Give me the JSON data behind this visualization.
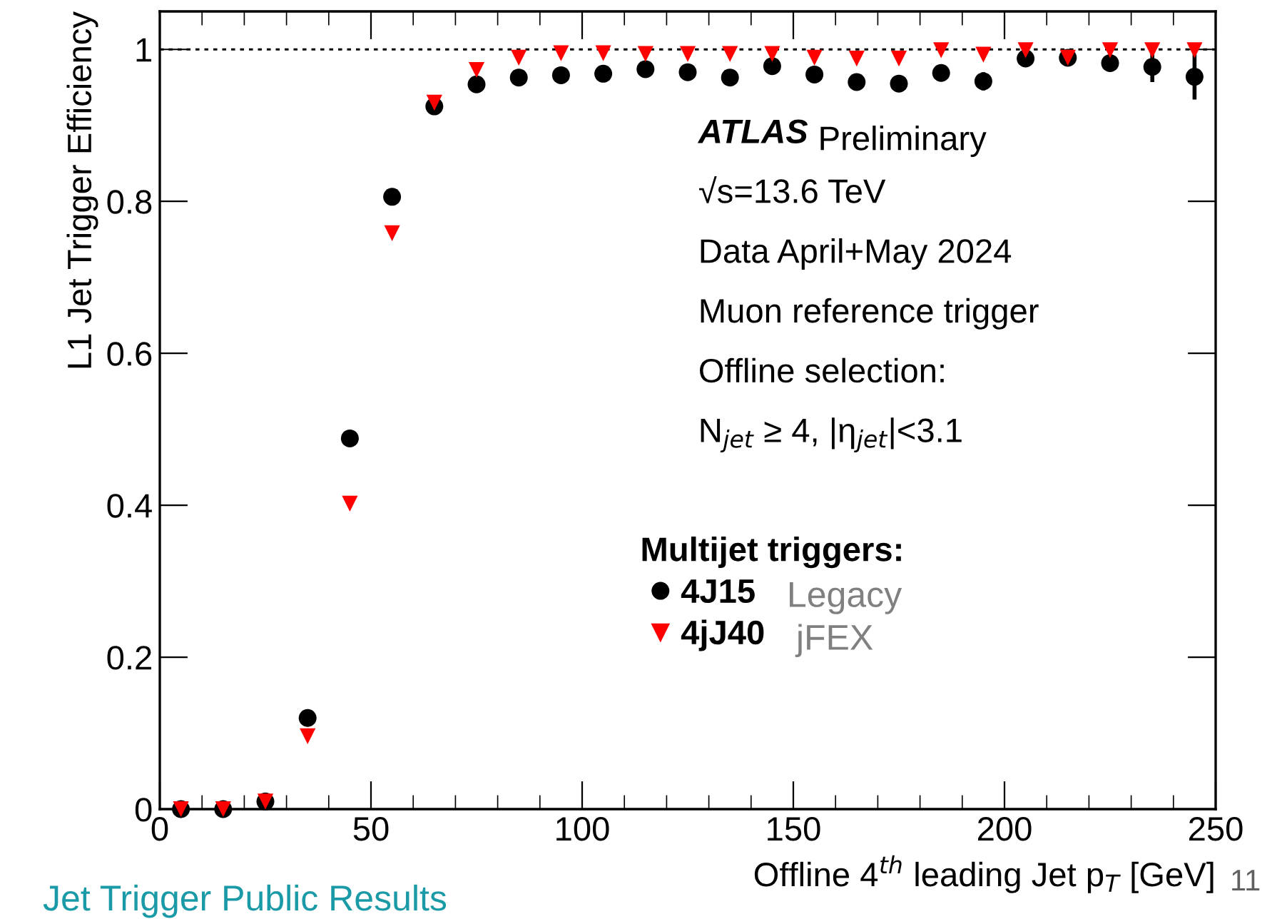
{
  "chart_data": {
    "type": "scatter",
    "xlabel": "Offline 4$^{th}$ leading Jet p$_{T}$ [GeV]",
    "ylabel": "L1 Jet Trigger Efficiency",
    "legend_title": "Multijet triggers:",
    "legend": "bottom",
    "x": [
      5,
      15,
      25,
      35,
      45,
      55,
      65,
      75,
      85,
      95,
      105,
      115,
      125,
      135,
      145,
      155,
      165,
      175,
      185,
      195,
      205,
      215,
      225,
      235,
      245
    ],
    "series": [
      {
        "name": "4J15",
        "color": "#000000",
        "marker": "circle",
        "values": [
          0,
          0,
          0.01,
          0.12,
          0.488,
          0.806,
          0.925,
          0.954,
          0.963,
          0.966,
          0.968,
          0.974,
          0.97,
          0.963,
          0.978,
          0.967,
          0.957,
          0.955,
          0.969,
          0.958,
          0.988,
          0.989,
          0.982,
          0.977,
          0.964
        ],
        "errors": [
          null,
          null,
          null,
          null,
          null,
          null,
          null,
          null,
          null,
          null,
          null,
          null,
          null,
          null,
          null,
          null,
          null,
          null,
          0.01,
          0.012,
          null,
          null,
          0.01,
          0.02,
          0.03
        ]
      },
      {
        "name": "4jJ40",
        "color": "#ff0000",
        "marker": "triangle",
        "values": [
          0,
          0,
          0.01,
          0.096,
          0.402,
          0.758,
          0.93,
          0.973,
          0.989,
          0.995,
          0.995,
          0.994,
          0.994,
          0.994,
          0.994,
          0.989,
          0.988,
          0.988,
          0.999,
          0.993,
          0.999,
          0.989,
          0.999,
          0.999,
          0.999
        ]
      }
    ],
    "xlim": [
      0,
      250
    ],
    "xticks": [
      0,
      50,
      100,
      150,
      200,
      250
    ],
    "ylim": [
      0,
      1.05
    ],
    "yticks": [
      0,
      0.2,
      0.4,
      0.6,
      0.8,
      1
    ],
    "ref_lines": [
      {
        "axis": "y",
        "value": 1,
        "line_style": "dotted",
        "color": "#000000"
      }
    ],
    "annotations": [
      "ATLAS",
      "Preliminary",
      "√s=13.6 TeV",
      "Data April+May 2024",
      "Muon reference trigger",
      "Offline selection:",
      "N$_{jet}$ ≥ 4, |η$_{jet}$|<3.1",
      "Legacy",
      "jFEX",
      "Jet Trigger Public Results",
      "11"
    ]
  }
}
